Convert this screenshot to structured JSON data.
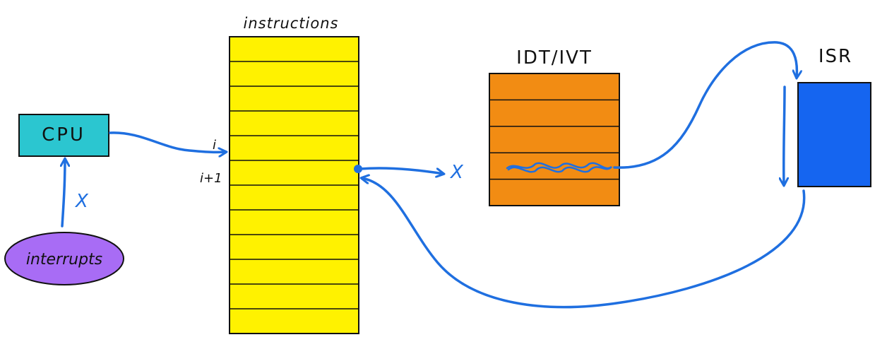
{
  "labels": {
    "cpu": "CPU",
    "interrupts": "interrupts",
    "instructions": "instructions",
    "idt": "IDT/IVT",
    "isr": "ISR",
    "row_i": "i",
    "row_i1": "i+1",
    "cross_interrupt": "X",
    "cross_idt": "X"
  },
  "instructions_rows": 12,
  "idt_rows": 5,
  "colors": {
    "cpu_fill": "#2bc6d0",
    "interrupts_fill": "#a86cf5",
    "instructions_fill": "#fff200",
    "idt_fill": "#f28c13",
    "isr_fill": "#1565f0",
    "arrow": "#1f6fe0",
    "outline": "#111111"
  }
}
